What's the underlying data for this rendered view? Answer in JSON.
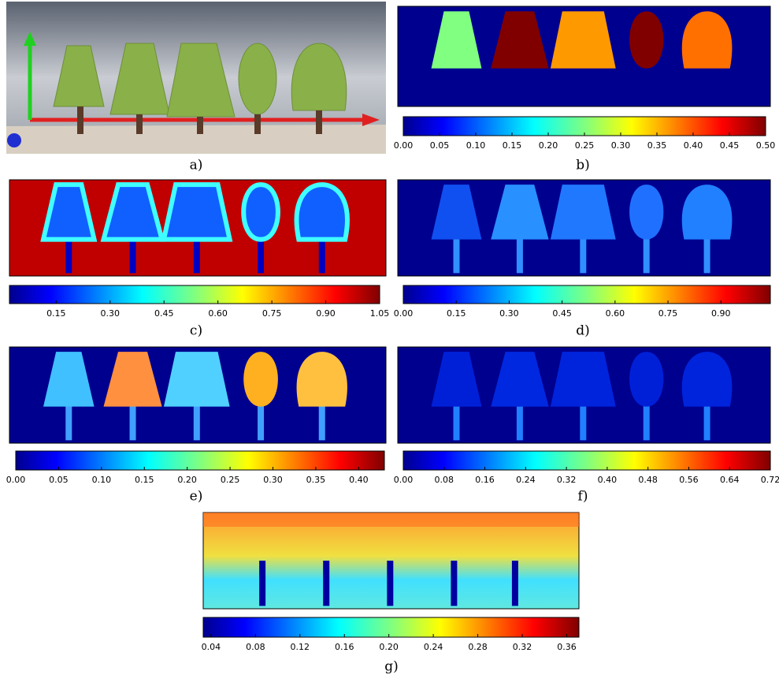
{
  "panels": [
    {
      "label": "a)"
    },
    {
      "label": "b)",
      "colorbar": {
        "lim": [
          0,
          0.5
        ],
        "ticks": [
          {
            "value": 0,
            "label": "0.00"
          },
          {
            "value": 0.05,
            "label": "0.05"
          },
          {
            "value": 0.1,
            "label": "0.10"
          },
          {
            "value": 0.15,
            "label": "0.15"
          },
          {
            "value": 0.2,
            "label": "0.20"
          },
          {
            "value": 0.25,
            "label": "0.25"
          },
          {
            "value": 0.3,
            "label": "0.30"
          },
          {
            "value": 0.35,
            "label": "0.35"
          },
          {
            "value": 0.4,
            "label": "0.40"
          },
          {
            "value": 0.45,
            "label": "0.45"
          },
          {
            "value": 0.5,
            "label": "0.50"
          }
        ]
      }
    },
    {
      "label": "c)",
      "colorbar": {
        "lim": [
          0.02,
          1.05
        ],
        "ticks": [
          {
            "value": 0.15,
            "label": "0.15"
          },
          {
            "value": 0.3,
            "label": "0.30"
          },
          {
            "value": 0.45,
            "label": "0.45"
          },
          {
            "value": 0.6,
            "label": "0.60"
          },
          {
            "value": 0.75,
            "label": "0.75"
          },
          {
            "value": 0.9,
            "label": "0.90"
          },
          {
            "value": 1.05,
            "label": "1.05"
          }
        ]
      }
    },
    {
      "label": "d)",
      "colorbar": {
        "lim": [
          0,
          1.04
        ],
        "ticks": [
          {
            "value": 0,
            "label": "0.00"
          },
          {
            "value": 0.15,
            "label": "0.15"
          },
          {
            "value": 0.3,
            "label": "0.30"
          },
          {
            "value": 0.45,
            "label": "0.45"
          },
          {
            "value": 0.6,
            "label": "0.60"
          },
          {
            "value": 0.75,
            "label": "0.75"
          },
          {
            "value": 0.9,
            "label": "0.90"
          }
        ]
      }
    },
    {
      "label": "e)",
      "colorbar": {
        "lim": [
          0,
          0.43
        ],
        "ticks": [
          {
            "value": 0,
            "label": "0.00"
          },
          {
            "value": 0.05,
            "label": "0.05"
          },
          {
            "value": 0.1,
            "label": "0.10"
          },
          {
            "value": 0.15,
            "label": "0.15"
          },
          {
            "value": 0.2,
            "label": "0.20"
          },
          {
            "value": 0.25,
            "label": "0.25"
          },
          {
            "value": 0.3,
            "label": "0.30"
          },
          {
            "value": 0.35,
            "label": "0.35"
          },
          {
            "value": 0.4,
            "label": "0.40"
          }
        ]
      }
    },
    {
      "label": "f)",
      "colorbar": {
        "lim": [
          0,
          0.72
        ],
        "ticks": [
          {
            "value": 0,
            "label": "0.00"
          },
          {
            "value": 0.08,
            "label": "0.08"
          },
          {
            "value": 0.16,
            "label": "0.16"
          },
          {
            "value": 0.24,
            "label": "0.24"
          },
          {
            "value": 0.32,
            "label": "0.32"
          },
          {
            "value": 0.4,
            "label": "0.40"
          },
          {
            "value": 0.48,
            "label": "0.48"
          },
          {
            "value": 0.56,
            "label": "0.56"
          },
          {
            "value": 0.64,
            "label": "0.64"
          },
          {
            "value": 0.72,
            "label": "0.72"
          }
        ]
      }
    },
    {
      "label": "g)",
      "colorbar": {
        "lim": [
          0.033,
          0.371
        ],
        "ticks": [
          {
            "value": 0.04,
            "label": "0.04"
          },
          {
            "value": 0.08,
            "label": "0.08"
          },
          {
            "value": 0.12,
            "label": "0.12"
          },
          {
            "value": 0.16,
            "label": "0.16"
          },
          {
            "value": 0.2,
            "label": "0.20"
          },
          {
            "value": 0.24,
            "label": "0.24"
          },
          {
            "value": 0.28,
            "label": "0.28"
          },
          {
            "value": 0.32,
            "label": "0.32"
          },
          {
            "value": 0.36,
            "label": "0.36"
          }
        ]
      }
    }
  ]
}
